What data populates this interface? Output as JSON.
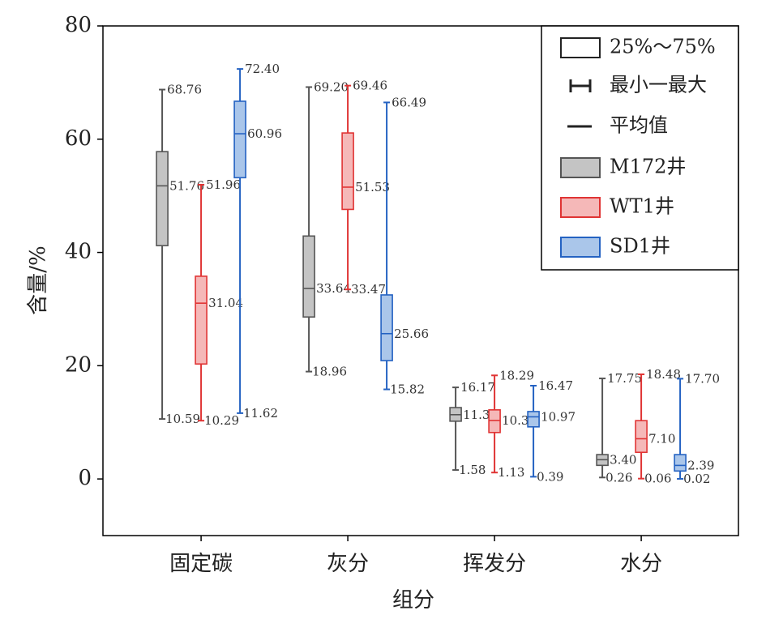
{
  "chart_data": {
    "type": "box",
    "xlabel": "组分",
    "ylabel": "含量/%",
    "categories": [
      "固定碳",
      "灰分",
      "挥发分",
      "水分"
    ],
    "ylim": [
      -10,
      80
    ],
    "yticks": [
      0,
      20,
      40,
      60,
      80
    ],
    "legend_position": "upper right",
    "legend_labels": {
      "box": "25%～75%",
      "range": "最小一最大",
      "mean": "平均值"
    },
    "series": [
      {
        "name": "M172井",
        "color": "#555555",
        "fill": "#c4c4c4",
        "min": [
          10.59,
          18.96,
          1.58,
          0.26
        ],
        "q1": [
          41.2,
          28.6,
          10.2,
          2.4
        ],
        "mean": [
          51.76,
          33.64,
          11.35,
          3.4
        ],
        "q3": [
          57.8,
          42.9,
          12.6,
          4.3
        ],
        "max": [
          68.76,
          69.2,
          16.17,
          17.75
        ],
        "min_labels": [
          "10.59",
          "18.96",
          "1.58",
          "0.26"
        ],
        "mean_labels": [
          "51.76",
          "33.64",
          "11.35",
          "3.40"
        ],
        "max_labels": [
          "68.76",
          "69.20",
          "16.17",
          "17.75"
        ]
      },
      {
        "name": "WT1井",
        "color": "#e03434",
        "fill": "#f5b8b8",
        "min": [
          10.29,
          33.47,
          1.13,
          0.06
        ],
        "q1": [
          20.3,
          47.6,
          8.2,
          4.7
        ],
        "mean": [
          31.04,
          51.53,
          10.33,
          7.1
        ],
        "q3": [
          35.8,
          61.1,
          12.2,
          10.3
        ],
        "max": [
          51.96,
          69.46,
          18.29,
          18.48
        ],
        "min_labels": [
          "10.29",
          "33.47",
          "1.13",
          "0.06"
        ],
        "mean_labels": [
          "31.04",
          "51.53",
          "10.33",
          "7.10"
        ],
        "max_labels": [
          "51.96",
          "69.46",
          "18.29",
          "18.48"
        ]
      },
      {
        "name": "SD1井",
        "color": "#2462c2",
        "fill": "#aac6ea",
        "min": [
          11.62,
          15.82,
          0.39,
          0.02
        ],
        "q1": [
          53.2,
          20.9,
          9.2,
          1.4
        ],
        "mean": [
          60.96,
          25.66,
          10.97,
          2.39
        ],
        "q3": [
          66.7,
          32.5,
          11.9,
          4.3
        ],
        "max": [
          72.4,
          66.49,
          16.47,
          17.7
        ],
        "min_labels": [
          "11.62",
          "15.82",
          "0.39",
          "0.02"
        ],
        "mean_labels": [
          "60.96",
          "25.66",
          "10.97",
          "2.39"
        ],
        "max_labels": [
          "72.40",
          "66.49",
          "16.47",
          "17.70"
        ]
      }
    ]
  }
}
